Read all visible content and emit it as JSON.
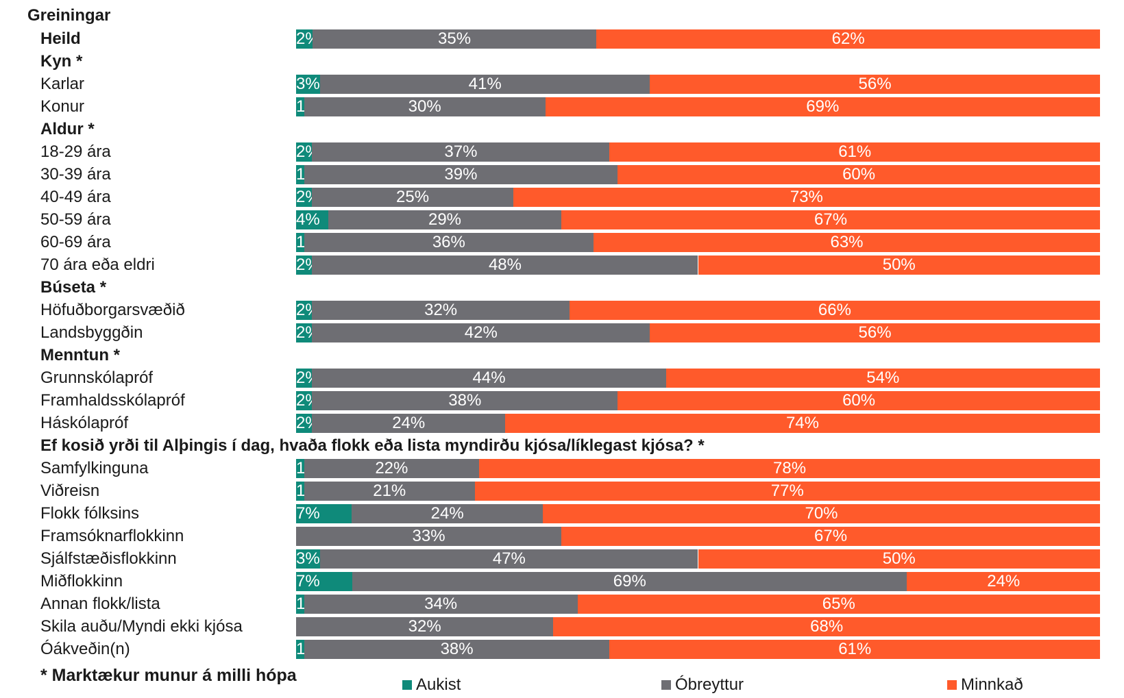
{
  "colors": {
    "aukist": "#0f8a7a",
    "obreyttur": "#6e6e73",
    "minnkad": "#ff5a2b"
  },
  "chart_data": {
    "type": "bar",
    "orientation": "horizontal-stacked",
    "title": "Greiningar",
    "series_names": [
      "Aukist",
      "Óbreyttur",
      "Minnkað"
    ],
    "legend_position": "bottom",
    "rows": [
      {
        "label": "Heild",
        "kind": "bar",
        "bold": true,
        "values": [
          2,
          35,
          62
        ]
      },
      {
        "label": "Kyn *",
        "kind": "header"
      },
      {
        "label": "Karlar",
        "kind": "bar",
        "values": [
          3,
          41,
          56
        ]
      },
      {
        "label": "Konur",
        "kind": "bar",
        "values": [
          1,
          30,
          69
        ]
      },
      {
        "label": "Aldur *",
        "kind": "header"
      },
      {
        "label": "18-29 ára",
        "kind": "bar",
        "values": [
          2,
          37,
          61
        ]
      },
      {
        "label": "30-39 ára",
        "kind": "bar",
        "values": [
          1,
          39,
          60
        ]
      },
      {
        "label": "40-49 ára",
        "kind": "bar",
        "values": [
          2,
          25,
          73
        ]
      },
      {
        "label": "50-59 ára",
        "kind": "bar",
        "values": [
          4,
          29,
          67
        ]
      },
      {
        "label": "60-69 ára",
        "kind": "bar",
        "values": [
          1,
          36,
          63
        ]
      },
      {
        "label": "70 ára eða eldri",
        "kind": "bar",
        "values": [
          2,
          48,
          50
        ]
      },
      {
        "label": "Búseta *",
        "kind": "header"
      },
      {
        "label": "Höfuðborgarsvæðið",
        "kind": "bar",
        "values": [
          2,
          32,
          66
        ]
      },
      {
        "label": "Landsbyggðin",
        "kind": "bar",
        "values": [
          2,
          42,
          56
        ]
      },
      {
        "label": "Menntun *",
        "kind": "header"
      },
      {
        "label": "Grunnskólapróf",
        "kind": "bar",
        "values": [
          2,
          44,
          54
        ]
      },
      {
        "label": "Framhaldsskólapróf",
        "kind": "bar",
        "values": [
          2,
          38,
          60
        ]
      },
      {
        "label": "Háskólapróf",
        "kind": "bar",
        "values": [
          2,
          24,
          74
        ]
      },
      {
        "label": "Ef kosið yrði til Alþingis í dag, hvaða flokk eða lista myndirðu kjósa/líklegast kjósa? *",
        "kind": "header"
      },
      {
        "label": "Samfylkinguna",
        "kind": "bar",
        "values": [
          1,
          22,
          78
        ]
      },
      {
        "label": "Viðreisn",
        "kind": "bar",
        "values": [
          1,
          21,
          77
        ]
      },
      {
        "label": "Flokk fólksins",
        "kind": "bar",
        "values": [
          7,
          24,
          70
        ]
      },
      {
        "label": "Framsóknarflokkinn",
        "kind": "bar",
        "values": [
          0,
          33,
          67
        ]
      },
      {
        "label": "Sjálfstæðisflokkinn",
        "kind": "bar",
        "values": [
          3,
          47,
          50
        ]
      },
      {
        "label": "Miðflokkinn",
        "kind": "bar",
        "values": [
          7,
          69,
          24
        ]
      },
      {
        "label": "Annan flokk/lista",
        "kind": "bar",
        "values": [
          1,
          34,
          65
        ]
      },
      {
        "label": "Skila auðu/Myndi ekki kjósa",
        "kind": "bar",
        "values": [
          0,
          32,
          68
        ]
      },
      {
        "label": "Óákveðin(n)",
        "kind": "bar",
        "values": [
          1,
          38,
          61
        ]
      }
    ]
  },
  "footnote": "* Marktækur munur á milli hópa"
}
